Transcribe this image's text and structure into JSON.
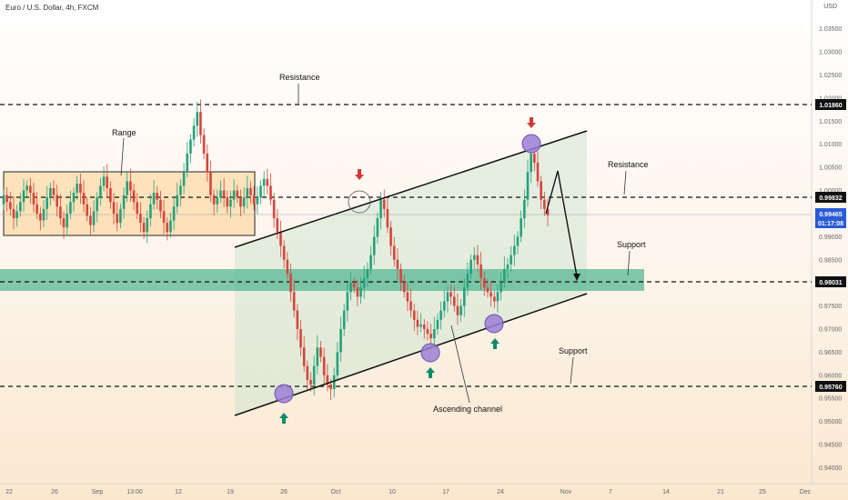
{
  "header": {
    "title": "Euro / U.S. Dollar, 4h, FXCM",
    "currency": "USD"
  },
  "chart_data": {
    "type": "candlestick",
    "ylim": [
      0.935,
      1.045
    ],
    "y_ticks": [
      "1.03500",
      "1.03000",
      "1.02500",
      "1.02000",
      "1.01500",
      "1.01000",
      "1.00500",
      "1.00000",
      "0.99500",
      "0.99000",
      "0.98500",
      "0.98000",
      "0.97500",
      "0.97000",
      "0.96500",
      "0.96000",
      "0.95500",
      "0.95000",
      "0.94500",
      "0.94000"
    ],
    "x_ticks": [
      "22",
      "26",
      "Sep",
      "13:00",
      "12",
      "19",
      "26",
      "Oct",
      "10",
      "17",
      "24",
      "Nov",
      "7",
      "14",
      "21",
      "25",
      "Dec"
    ],
    "levels": {
      "resistance_top": "1.01860",
      "resistance_mid": "0.99832",
      "support_zone": "0.98031",
      "support_bottom": "0.95760"
    },
    "current": {
      "price": "0.99465",
      "countdown": "01:17:08"
    },
    "annotations": {
      "range": "Range",
      "resistance_1": "Resistance",
      "resistance_2": "Resistance",
      "support_1": "Support",
      "support_2": "Support",
      "channel": "Ascending channel"
    },
    "closes": [
      0.999,
      0.9975,
      0.996,
      0.994,
      0.9955,
      0.9975,
      1.0,
      1.001,
      0.9995,
      0.997,
      0.995,
      0.9935,
      0.996,
      0.9985,
      1.0005,
      0.999,
      0.9965,
      0.994,
      0.992,
      0.995,
      0.9975,
      0.9995,
      1.0015,
      0.9995,
      0.997,
      0.9945,
      0.9925,
      0.9955,
      0.9985,
      1.001,
      1.003,
      1.0005,
      0.9975,
      0.995,
      0.993,
      0.996,
      0.999,
      1.002,
      1.0,
      0.9975,
      0.995,
      0.993,
      0.991,
      0.994,
      0.997,
      0.9995,
      0.998,
      0.9955,
      0.993,
      0.991,
      0.9935,
      0.9965,
      0.999,
      1.001,
      1.004,
      1.008,
      1.011,
      1.014,
      1.017,
      1.012,
      1.008,
      1.004,
      0.999,
      0.997,
      0.9985,
      1.0,
      0.9985,
      0.9965,
      0.998,
      1.0,
      0.9985,
      0.9965,
      0.9985,
      1.0005,
      0.999,
      0.997,
      0.9985,
      1.001,
      1.0025,
      1.001,
      0.998,
      0.994,
      0.991,
      0.988,
      0.985,
      0.982,
      0.978,
      0.974,
      0.97,
      0.966,
      0.962,
      0.959,
      0.958,
      0.962,
      0.966,
      0.964,
      0.96,
      0.958,
      0.957,
      0.96,
      0.965,
      0.97,
      0.974,
      0.978,
      0.98,
      0.979,
      0.977,
      0.979,
      0.981,
      0.983,
      0.986,
      0.99,
      0.994,
      0.998,
      0.996,
      0.992,
      0.988,
      0.985,
      0.983,
      0.98,
      0.978,
      0.976,
      0.974,
      0.972,
      0.9705,
      0.971,
      0.97,
      0.969,
      0.968,
      0.97,
      0.972,
      0.974,
      0.976,
      0.978,
      0.977,
      0.975,
      0.973,
      0.975,
      0.979,
      0.982,
      0.985,
      0.986,
      0.984,
      0.981,
      0.979,
      0.978,
      0.977,
      0.976,
      0.978,
      0.98,
      0.983,
      0.984,
      0.986,
      0.988,
      0.99,
      0.994,
      0.998,
      1.004,
      1.008,
      1.006,
      1.002,
      0.998,
      0.996,
      0.9946
    ]
  }
}
